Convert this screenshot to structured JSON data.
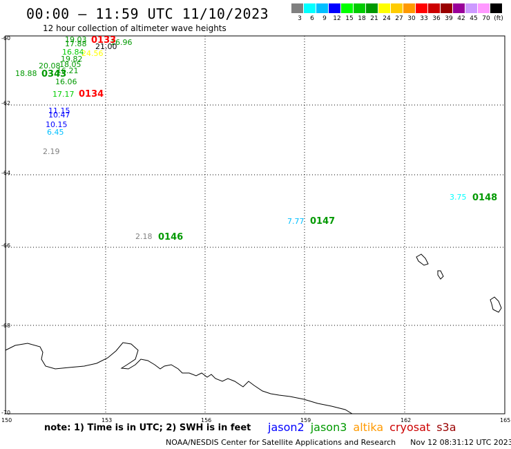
{
  "header": {
    "title": "00:00 – 11:59 UTC 11/10/2023",
    "subtitle": "12 hour collection of altimeter wave heights"
  },
  "legend": {
    "colors": [
      "#808080",
      "#00ffff",
      "#00bfff",
      "#0000ff",
      "#00ff00",
      "#00cc00",
      "#009900",
      "#ffff00",
      "#ffcc00",
      "#ff9900",
      "#ff0000",
      "#cc0000",
      "#990000",
      "#990099",
      "#cc99ff",
      "#ff99ff",
      "#000000"
    ],
    "labels": [
      "3",
      "6",
      "9",
      "12",
      "15",
      "18",
      "21",
      "24",
      "27",
      "30",
      "33",
      "36",
      "39",
      "42",
      "45",
      "70",
      "(ft)"
    ]
  },
  "axes": {
    "lat_labels": [
      "-60",
      "-62",
      "-64",
      "-66",
      "-68",
      "-70"
    ],
    "lon_labels": [
      "150",
      "153",
      "156",
      "159",
      "162",
      "165"
    ]
  },
  "measurements": [
    {
      "text": "19.03",
      "color": "#009900"
    },
    {
      "text": "17.88",
      "color": "#009900"
    },
    {
      "text": "16.96",
      "color": "#009900"
    },
    {
      "text": "21.00",
      "color": "#000000"
    },
    {
      "text": "16.84",
      "color": "#00cc00"
    },
    {
      "text": "24.56",
      "color": "#ffff00"
    },
    {
      "text": "19.82",
      "color": "#009900"
    },
    {
      "text": "20.08",
      "color": "#009900"
    },
    {
      "text": "18.05",
      "color": "#009900"
    },
    {
      "text": "18.88",
      "color": "#009900"
    },
    {
      "text": "16.21",
      "color": "#009900"
    },
    {
      "text": "16.06",
      "color": "#009900"
    },
    {
      "text": "17.17",
      "color": "#00cc00"
    },
    {
      "text": "11.15",
      "color": "#0000ff"
    },
    {
      "text": "10.47",
      "color": "#0000ff"
    },
    {
      "text": "10.15",
      "color": "#0000ff"
    },
    {
      "text": "6.45",
      "color": "#00bfff"
    },
    {
      "text": "2.19",
      "color": "#808080"
    },
    {
      "text": "2.18",
      "color": "#808080"
    },
    {
      "text": "7.77",
      "color": "#00bfff"
    },
    {
      "text": "3.75",
      "color": "#00ffff"
    }
  ],
  "time_codes": [
    {
      "text": "0133",
      "color": "#ff0000"
    },
    {
      "text": "0343",
      "color": "#009900"
    },
    {
      "text": "0134",
      "color": "#ff0000"
    },
    {
      "text": "0146",
      "color": "#009900"
    },
    {
      "text": "0147",
      "color": "#009900"
    },
    {
      "text": "0148",
      "color": "#009900"
    }
  ],
  "footer": {
    "note": "note: 1) Time is in UTC; 2) SWH is in feet",
    "satellites": [
      {
        "name": "jason2",
        "color": "#0000ff"
      },
      {
        "name": "jason3",
        "color": "#009900"
      },
      {
        "name": "altika",
        "color": "#ff9900"
      },
      {
        "name": "cryosat",
        "color": "#cc0000"
      },
      {
        "name": "s3a",
        "color": "#990000"
      }
    ],
    "credit": "NOAA/NESDIS Center for Satellite Applications and Research",
    "timestamp": "Nov 12 08:31:12 UTC 2023"
  }
}
